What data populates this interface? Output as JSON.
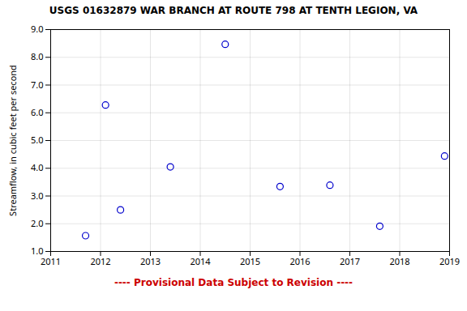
{
  "chart_data": {
    "type": "scatter",
    "title": "USGS 01632879 WAR BRANCH AT ROUTE 798 AT TENTH LEGION, VA",
    "ylabel": "Streamflow, in cubic feet per second",
    "x": [
      2011.7,
      2012.1,
      2012.4,
      2013.4,
      2014.5,
      2015.6,
      2016.6,
      2017.6,
      2018.9
    ],
    "values": [
      1.57,
      6.28,
      2.5,
      4.05,
      8.47,
      3.34,
      3.39,
      1.91,
      4.44
    ],
    "color": "#0000CC",
    "marker": "open_circle",
    "xlim": [
      2011,
      2019
    ],
    "ylim": [
      1.0,
      9.0
    ],
    "xticks": [
      2011,
      2012,
      2013,
      2014,
      2015,
      2016,
      2017,
      2018,
      2019
    ],
    "yticks": [
      {
        "value": 1,
        "label": "1.0"
      },
      {
        "value": 2,
        "label": "2.0"
      },
      {
        "value": 3,
        "label": "3.0"
      },
      {
        "value": 4,
        "label": "4.0"
      },
      {
        "value": 5,
        "label": "5.0"
      },
      {
        "value": 6,
        "label": "6.0"
      },
      {
        "value": 7,
        "label": "7.0"
      },
      {
        "value": 8,
        "label": "8.0"
      },
      {
        "value": 9,
        "label": "9.0"
      }
    ],
    "grid": true,
    "annotations": [
      {
        "text": "---- Provisional Data Subject to Revision ----",
        "color": "#cc0000"
      }
    ]
  }
}
